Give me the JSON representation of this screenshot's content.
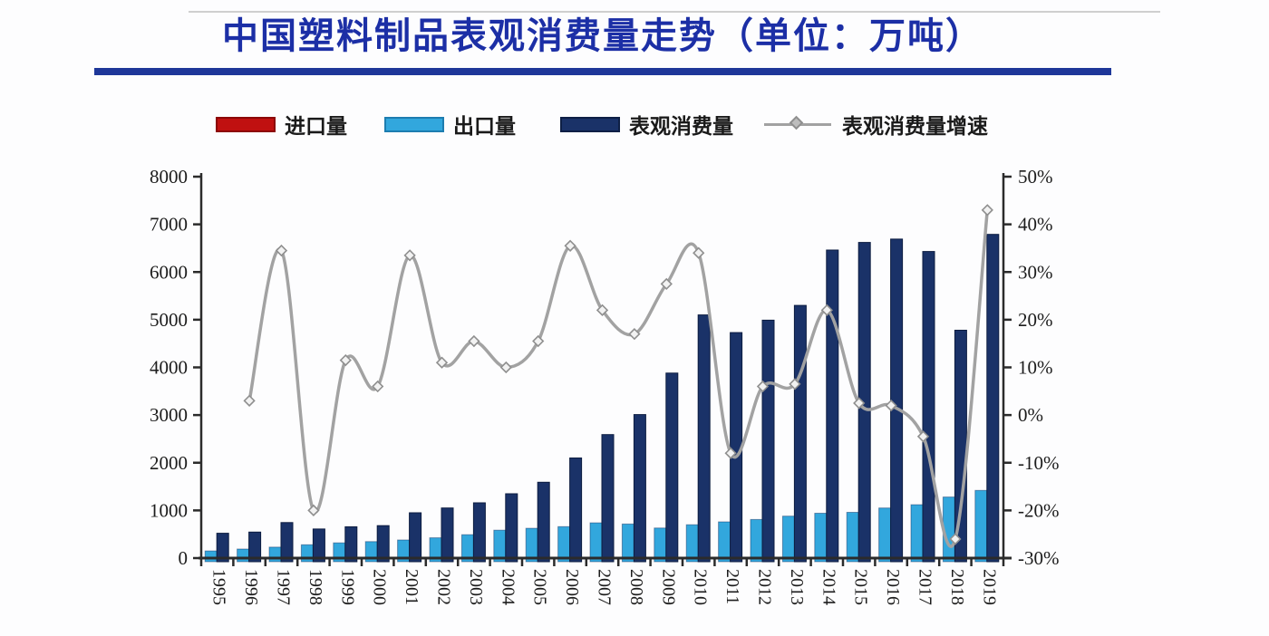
{
  "title": "中国塑料制品表观消费量走势（单位：万吨）",
  "legend": [
    {
      "label": "进口量",
      "type": "bar",
      "color": "#c01010"
    },
    {
      "label": "出口量",
      "type": "bar",
      "color": "#32a7dd"
    },
    {
      "label": "表观消费量",
      "type": "bar",
      "color": "#1a3268"
    },
    {
      "label": "表观消费量增速",
      "type": "line",
      "color": "#a2a2a2"
    }
  ],
  "chart_data": {
    "type": "combo-bar-line",
    "title": "中国塑料制品表观消费量走势（单位：万吨）",
    "categories": [
      "1995",
      "1996",
      "1997",
      "1998",
      "1999",
      "2000",
      "2001",
      "2002",
      "2003",
      "2004",
      "2005",
      "2006",
      "2007",
      "2008",
      "2009",
      "2010",
      "2011",
      "2012",
      "2013",
      "2014",
      "2015",
      "2016",
      "2017",
      "2018",
      "2019"
    ],
    "series": [
      {
        "name": "进口量",
        "type": "bar",
        "axis": "left",
        "color": "#c01010",
        "visible_in_plot": false,
        "values": null
      },
      {
        "name": "出口量",
        "type": "bar",
        "axis": "left",
        "color": "#32a7dd",
        "values": [
          150,
          190,
          230,
          280,
          320,
          345,
          380,
          425,
          490,
          585,
          625,
          660,
          740,
          715,
          630,
          700,
          760,
          810,
          880,
          940,
          960,
          1050,
          1120,
          1280,
          1420
        ]
      },
      {
        "name": "表观消费量",
        "type": "bar",
        "axis": "left",
        "color": "#1a3268",
        "values": [
          520,
          545,
          745,
          610,
          655,
          680,
          950,
          1050,
          1160,
          1350,
          1590,
          2100,
          2590,
          3010,
          3880,
          5100,
          4730,
          4990,
          5300,
          6460,
          6620,
          6690,
          6430,
          4780,
          6790
        ]
      },
      {
        "name": "表观消费量增速",
        "type": "line",
        "axis": "right",
        "color": "#a2a2a2",
        "unit": "%",
        "values": [
          null,
          3,
          34.5,
          -20,
          11.5,
          6,
          33.5,
          11,
          15.5,
          10,
          15.5,
          35.5,
          22,
          17,
          27.5,
          34,
          -8,
          6,
          6.5,
          22,
          2.5,
          2,
          -4.5,
          -26,
          43
        ]
      }
    ],
    "left_axis": {
      "min": 0,
      "max": 8000,
      "step": 1000,
      "ticks": [
        "8000",
        "7000",
        "6000",
        "5000",
        "4000",
        "3000",
        "2000",
        "1000",
        "0"
      ]
    },
    "right_axis": {
      "min": -30,
      "max": 50,
      "step": 10,
      "ticks": [
        "50%",
        "40%",
        "30%",
        "20%",
        "10%",
        "0%",
        "-10%",
        "-20%",
        "-30%"
      ]
    },
    "grid": false,
    "legend_position": "top"
  }
}
